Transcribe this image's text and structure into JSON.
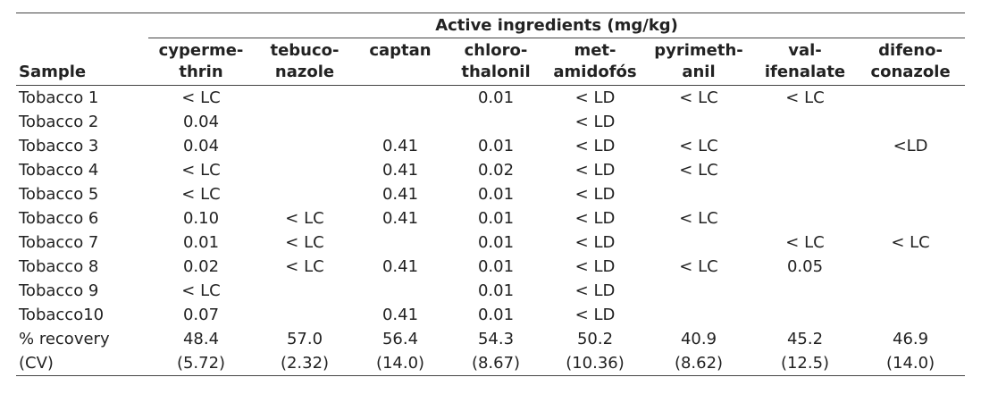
{
  "table": {
    "group_header": "Active ingredients (mg/kg)",
    "sample_header": "Sample",
    "columns": [
      {
        "line1": "cyperme-",
        "line2": "thrin"
      },
      {
        "line1": "tebuco-",
        "line2": "nazole"
      },
      {
        "line1": "captan",
        "line2": ""
      },
      {
        "line1": "chloro-",
        "line2": "thalonil"
      },
      {
        "line1": "met-",
        "line2": "amidofós"
      },
      {
        "line1": "pyrimeth-",
        "line2": "anil"
      },
      {
        "line1": "val-",
        "line2": "ifenalate"
      },
      {
        "line1": "difeno-",
        "line2": "conazole"
      }
    ],
    "rows": [
      {
        "sample": "Tobacco 1",
        "values": [
          "< LC",
          "",
          "",
          "0.01",
          "< LD",
          "< LC",
          "< LC",
          ""
        ]
      },
      {
        "sample": "Tobacco 2",
        "values": [
          "0.04",
          "",
          "",
          "",
          "< LD",
          "",
          "",
          ""
        ]
      },
      {
        "sample": "Tobacco 3",
        "values": [
          "0.04",
          "",
          "0.41",
          "0.01",
          "< LD",
          "< LC",
          "",
          "<LD"
        ]
      },
      {
        "sample": "Tobacco 4",
        "values": [
          "< LC",
          "",
          "0.41",
          "0.02",
          "< LD",
          "< LC",
          "",
          ""
        ]
      },
      {
        "sample": "Tobacco 5",
        "values": [
          "< LC",
          "",
          "0.41",
          "0.01",
          "< LD",
          "",
          "",
          ""
        ]
      },
      {
        "sample": "Tobacco 6",
        "values": [
          "0.10",
          "< LC",
          "0.41",
          "0.01",
          "< LD",
          "< LC",
          "",
          ""
        ]
      },
      {
        "sample": "Tobacco 7",
        "values": [
          "0.01",
          "< LC",
          "",
          "0.01",
          "< LD",
          "",
          "< LC",
          "< LC"
        ]
      },
      {
        "sample": "Tobacco 8",
        "values": [
          "0.02",
          "< LC",
          "0.41",
          "0.01",
          "< LD",
          "< LC",
          "0.05",
          ""
        ]
      },
      {
        "sample": "Tobacco 9",
        "values": [
          "< LC",
          "",
          "",
          "0.01",
          "< LD",
          "",
          "",
          ""
        ]
      },
      {
        "sample": "Tobacco10",
        "values": [
          "0.07",
          "",
          "0.41",
          "0.01",
          "< LD",
          "",
          "",
          ""
        ]
      },
      {
        "sample": "% recovery",
        "values": [
          "48.4",
          "57.0",
          "56.4",
          "54.3",
          "50.2",
          "40.9",
          "45.2",
          "46.9"
        ]
      },
      {
        "sample": "(CV)",
        "values": [
          "(5.72)",
          "(2.32)",
          "(14.0)",
          "(8.67)",
          "(10.36)",
          "(8.62)",
          "(12.5)",
          "(14.0)"
        ]
      }
    ]
  }
}
